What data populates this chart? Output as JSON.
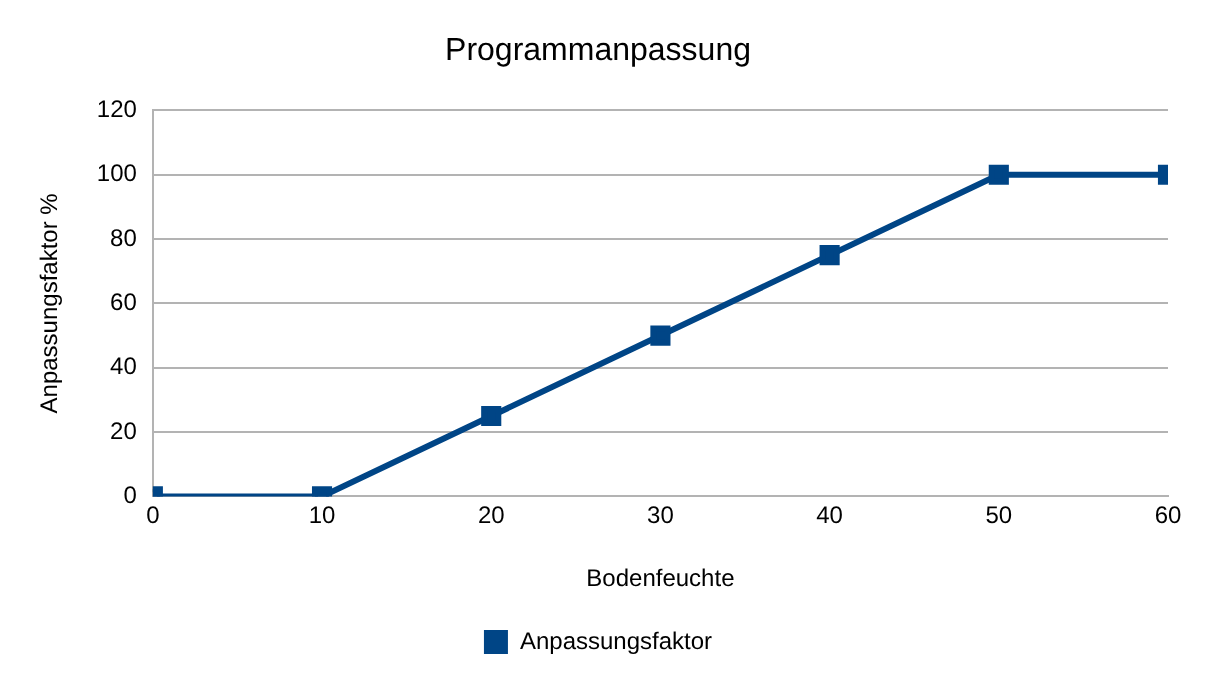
{
  "chart_data": {
    "type": "line",
    "title": "Programmanpassung",
    "xlabel": "Bodenfeuchte",
    "ylabel": "Anpassungsfaktor %",
    "x": [
      0,
      10,
      20,
      30,
      40,
      50,
      60
    ],
    "series": [
      {
        "name": "Anpassungsfaktor",
        "color": "#004586",
        "values": [
          0,
          0,
          25,
          50,
          75,
          100,
          100
        ]
      }
    ],
    "xlim": [
      0,
      60
    ],
    "xticks": [
      0,
      10,
      20,
      30,
      40,
      50,
      60
    ],
    "ylim": [
      0,
      120
    ],
    "yticks": [
      0,
      20,
      40,
      60,
      80,
      100,
      120
    ],
    "grid": "y",
    "legend": "bottom",
    "marker": "square",
    "line_style": "solid"
  }
}
